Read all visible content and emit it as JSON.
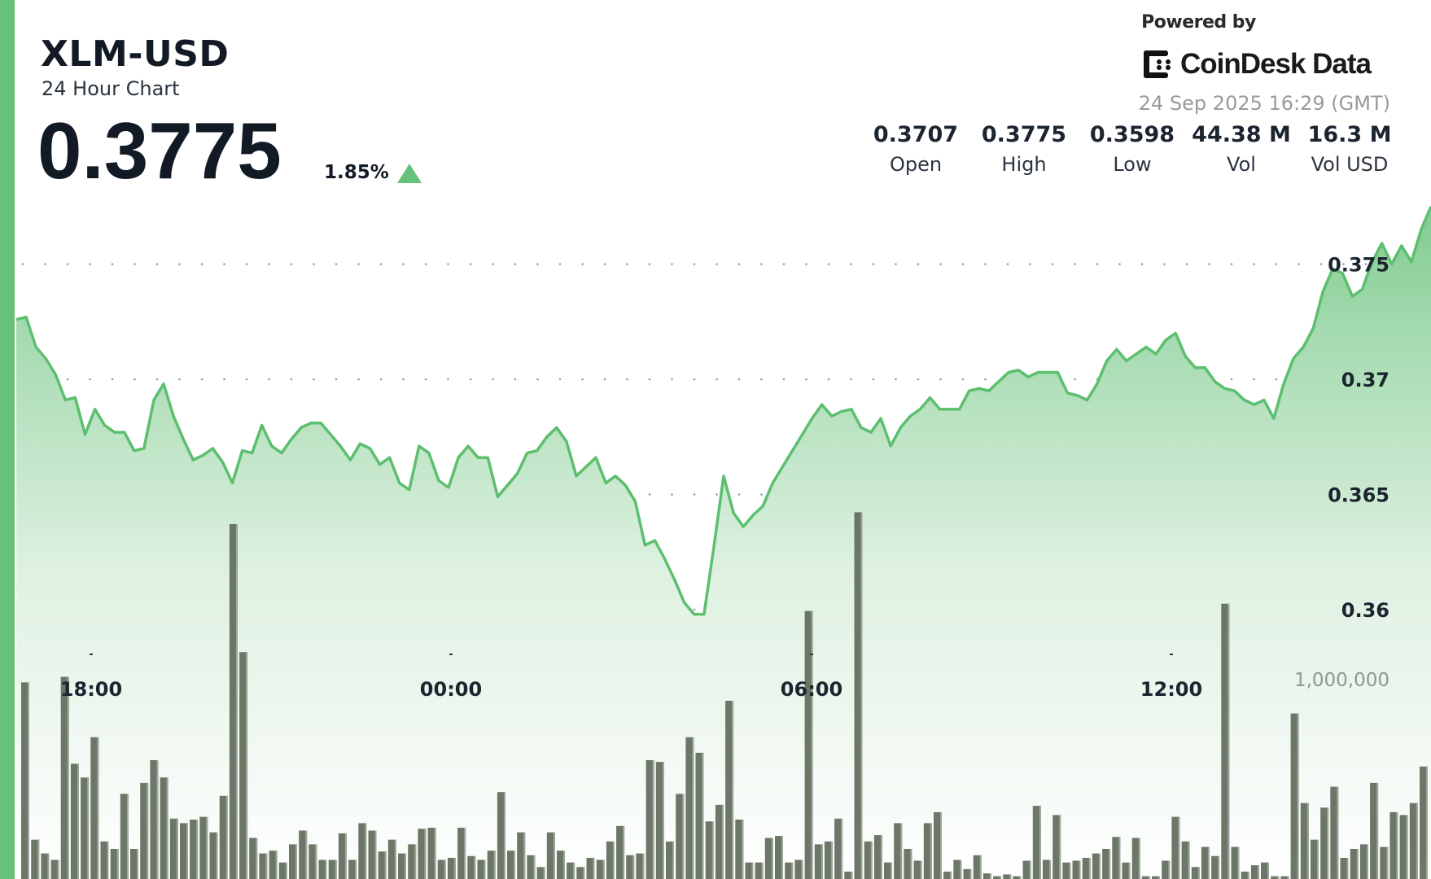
{
  "header": {
    "title": "XLM-USD",
    "subtitle": "24 Hour Chart",
    "price": "0.3775",
    "change": "1.85%",
    "change_direction": "up",
    "change_icon": "triangle-up-icon"
  },
  "branding": {
    "powered_by": "Powered by",
    "logo_text": "CoinDesk Data",
    "timestamp": "24 Sep 2025 16:29 (GMT)"
  },
  "stats": [
    {
      "value": "0.3707",
      "label": "Open"
    },
    {
      "value": "0.3775",
      "label": "High"
    },
    {
      "value": "0.3598",
      "label": "Low"
    },
    {
      "value": "44.38 M",
      "label": "Vol"
    },
    {
      "value": "16.3 M",
      "label": "Vol USD"
    }
  ],
  "colors": {
    "accent": "#66c17a",
    "line": "#5cbf6e",
    "volume_bar": "#5f6b5f",
    "text": "#121a26"
  },
  "chart_data": [
    {
      "type": "area",
      "series": [
        {
          "values": [
            0.3726,
            0.3727,
            0.3714,
            0.3709,
            0.3702,
            0.3691,
            0.3692,
            0.3676,
            0.3687,
            0.368,
            0.3677,
            0.3677,
            0.3669,
            0.367,
            0.3691,
            0.3698,
            0.3684,
            0.3674,
            0.3665,
            0.3667,
            0.367,
            0.3664,
            0.3655,
            0.3669,
            0.3668,
            0.368,
            0.3671,
            0.3668,
            0.3674,
            0.3679,
            0.3681,
            0.3681,
            0.3676,
            0.3671,
            0.3665,
            0.3672,
            0.367,
            0.3663,
            0.3666,
            0.3655,
            0.3652,
            0.3671,
            0.3668,
            0.3656,
            0.3653,
            0.3666,
            0.3671,
            0.3666,
            0.3666,
            0.3649,
            0.3654,
            0.3659,
            0.3668,
            0.3669,
            0.3675,
            0.3679,
            0.3673,
            0.3658,
            0.3662,
            0.3666,
            0.3655,
            0.3658,
            0.3654,
            0.3647,
            0.3628,
            0.363,
            0.3622,
            0.3613,
            0.3603,
            0.3598,
            0.3598,
            0.3627,
            0.3658,
            0.3642,
            0.3636,
            0.3641,
            0.3645,
            0.3655,
            0.3662,
            0.3669,
            0.3676,
            0.3683,
            0.3689,
            0.3684,
            0.3686,
            0.3687,
            0.3679,
            0.3677,
            0.3683,
            0.3671,
            0.3679,
            0.3684,
            0.3687,
            0.3692,
            0.3687,
            0.3687,
            0.3687,
            0.3695,
            0.3696,
            0.3695,
            0.3699,
            0.3703,
            0.3704,
            0.3701,
            0.3703,
            0.3703,
            0.3703,
            0.3694,
            0.3693,
            0.3691,
            0.3698,
            0.3708,
            0.3713,
            0.3708,
            0.3711,
            0.3714,
            0.3711,
            0.3717,
            0.372,
            0.371,
            0.3705,
            0.3705,
            0.3699,
            0.3696,
            0.3695,
            0.3691,
            0.3689,
            0.3691,
            0.3683,
            0.3698,
            0.3709,
            0.3714,
            0.3722,
            0.3738,
            0.3748,
            0.3746,
            0.3736,
            0.3739,
            0.3751,
            0.3759,
            0.375,
            0.3758,
            0.3751,
            0.3765,
            0.3775
          ]
        }
      ],
      "y_ticks": [
        "0.375",
        "0.37",
        "0.365",
        "0.36"
      ],
      "y_tick_values": [
        0.375,
        0.37,
        0.365,
        0.36
      ],
      "x_ticks": [
        "18:00",
        "00:00",
        "06:00",
        "12:00"
      ],
      "grid": "dotted-horizontal"
    },
    {
      "type": "bar",
      "series": [
        {
          "values": [
            986000,
            197000,
            128000,
            96000,
            1014000,
            578000,
            509000,
            711000,
            188000,
            151000,
            427000,
            151000,
            482000,
            596000,
            509000,
            303000,
            280000,
            298000,
            312000,
            234000,
            417000,
            1780000,
            1138000,
            206000,
            128000,
            142000,
            83000,
            174000,
            243000,
            174000,
            96000,
            96000,
            229000,
            96000,
            280000,
            243000,
            138000,
            197000,
            128000,
            174000,
            252000,
            257000,
            96000,
            106000,
            257000,
            115000,
            96000,
            142000,
            436000,
            142000,
            234000,
            119000,
            60000,
            234000,
            142000,
            83000,
            60000,
            106000,
            96000,
            188000,
            266000,
            119000,
            128000,
            596000,
            587000,
            188000,
            427000,
            711000,
            633000,
            289000,
            372000,
            894000,
            298000,
            83000,
            83000,
            206000,
            216000,
            83000,
            96000,
            1344000,
            174000,
            188000,
            303000,
            37000,
            1839000,
            188000,
            220000,
            83000,
            280000,
            151000,
            92000,
            280000,
            335000,
            37000,
            96000,
            50000,
            119000,
            28000,
            14000,
            23000,
            14000,
            92000,
            367000,
            96000,
            321000,
            83000,
            92000,
            106000,
            128000,
            151000,
            211000,
            83000,
            206000,
            14000,
            14000,
            92000,
            312000,
            188000,
            60000,
            161000,
            115000,
            1381000,
            161000,
            37000,
            69000,
            83000,
            14000,
            14000,
            830000,
            381000,
            197000,
            358000,
            463000,
            106000,
            151000,
            174000,
            482000,
            161000,
            335000,
            321000,
            381000,
            564000
          ]
        }
      ],
      "y_tick_label": "1,000,000",
      "y_tick_value": 1000000
    }
  ]
}
